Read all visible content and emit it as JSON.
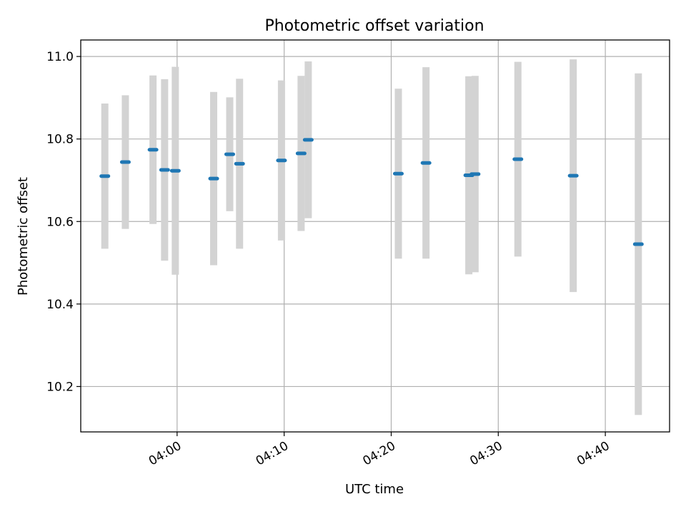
{
  "chart_data": {
    "type": "scatter",
    "title": "Photometric offset variation",
    "xlabel": "UTC time",
    "ylabel": "Photometric offset",
    "xlim": [
      "03:51:00",
      "04:46:00"
    ],
    "ylim": [
      10.09,
      11.04
    ],
    "x_ticks": [
      "04:00",
      "04:10",
      "04:20",
      "04:30",
      "04:40"
    ],
    "y_ticks": [
      "10.2",
      "10.4",
      "10.6",
      "10.8",
      "11.0"
    ],
    "grid": true,
    "colors": {
      "point": "#1f77b4",
      "errorbar": "#d3d3d3",
      "grid": "#b0b0b0"
    },
    "points": [
      {
        "t": "03:53:15",
        "y": 10.71,
        "err": 0.176
      },
      {
        "t": "03:55:10",
        "y": 10.744,
        "err": 0.162
      },
      {
        "t": "03:57:45",
        "y": 10.774,
        "err": 0.18
      },
      {
        "t": "03:58:50",
        "y": 10.725,
        "err": 0.22
      },
      {
        "t": "03:59:50",
        "y": 10.723,
        "err": 0.252
      },
      {
        "t": "04:03:25",
        "y": 10.704,
        "err": 0.21
      },
      {
        "t": "04:04:55",
        "y": 10.763,
        "err": 0.138
      },
      {
        "t": "04:05:50",
        "y": 10.74,
        "err": 0.206
      },
      {
        "t": "04:09:45",
        "y": 10.748,
        "err": 0.194
      },
      {
        "t": "04:11:35",
        "y": 10.765,
        "err": 0.188
      },
      {
        "t": "04:12:15",
        "y": 10.798,
        "err": 0.19
      },
      {
        "t": "04:20:40",
        "y": 10.716,
        "err": 0.206
      },
      {
        "t": "04:23:15",
        "y": 10.742,
        "err": 0.232
      },
      {
        "t": "04:27:15",
        "y": 10.712,
        "err": 0.24
      },
      {
        "t": "04:27:50",
        "y": 10.715,
        "err": 0.238
      },
      {
        "t": "04:31:50",
        "y": 10.751,
        "err": 0.236
      },
      {
        "t": "04:37:00",
        "y": 10.711,
        "err": 0.282
      },
      {
        "t": "04:43:05",
        "y": 10.545,
        "err": 0.414
      }
    ]
  }
}
